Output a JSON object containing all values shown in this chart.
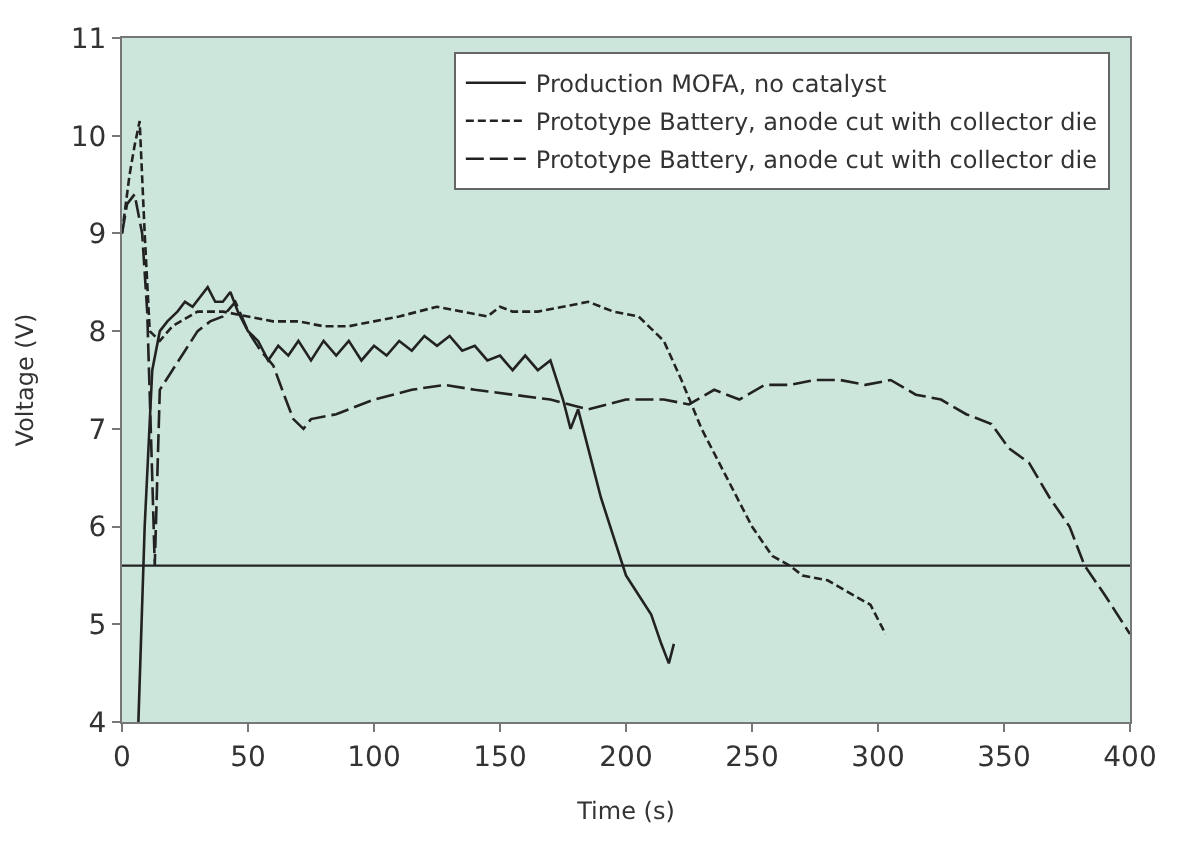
{
  "chart_data": {
    "type": "line",
    "xlabel": "Time (s)",
    "ylabel": "Voltage (V)",
    "xlim": [
      0,
      400
    ],
    "xticks": [
      0,
      50,
      100,
      150,
      200,
      250,
      300,
      350,
      400
    ],
    "ylim": [
      4,
      11
    ],
    "yticks": [
      4,
      5,
      6,
      7,
      8,
      9,
      10,
      11
    ],
    "grid": false,
    "legend": "top right",
    "marker": "none",
    "ref_lines": [
      {
        "axis": "y",
        "value": 5.6,
        "color": "#222222",
        "line_style": "solid"
      }
    ],
    "series": [
      {
        "name": "Production MOFA, no catalyst",
        "color": "#222222",
        "line_style": "solid",
        "x": [
          6.5,
          9,
          12,
          15,
          18,
          22,
          25,
          28,
          31,
          34,
          37,
          40,
          43,
          46,
          50,
          54,
          58,
          62,
          66,
          70,
          75,
          80,
          85,
          90,
          95,
          100,
          105,
          110,
          115,
          120,
          125,
          130,
          135,
          140,
          145,
          150,
          155,
          160,
          165,
          170,
          175,
          178,
          181,
          185,
          190,
          195,
          200,
          205,
          210,
          214,
          217,
          219
        ],
        "values": [
          4,
          6,
          7.6,
          8.0,
          8.1,
          8.2,
          8.3,
          8.25,
          8.35,
          8.45,
          8.3,
          8.3,
          8.4,
          8.2,
          8.0,
          7.9,
          7.7,
          7.85,
          7.75,
          7.9,
          7.7,
          7.9,
          7.75,
          7.9,
          7.7,
          7.85,
          7.75,
          7.9,
          7.8,
          7.95,
          7.85,
          7.95,
          7.8,
          7.85,
          7.7,
          7.75,
          7.6,
          7.75,
          7.6,
          7.7,
          7.3,
          7.0,
          7.2,
          6.8,
          6.3,
          5.9,
          5.5,
          5.3,
          5.1,
          4.8,
          4.6,
          4.8
        ]
      },
      {
        "name": "Prototype Battery, anode cut with collector die",
        "color": "#222222",
        "line_style": "dash",
        "x": [
          0,
          3,
          5,
          7,
          9,
          11,
          15,
          20,
          30,
          40,
          50,
          60,
          70,
          80,
          90,
          100,
          110,
          125,
          135,
          145,
          150,
          155,
          165,
          175,
          185,
          195,
          205,
          215,
          222,
          230,
          240,
          250,
          258,
          265,
          270,
          280,
          290,
          297,
          303
        ],
        "values": [
          9.0,
          9.6,
          9.9,
          10.15,
          9.0,
          8.0,
          7.9,
          8.05,
          8.2,
          8.2,
          8.15,
          8.1,
          8.1,
          8.05,
          8.05,
          8.1,
          8.15,
          8.25,
          8.2,
          8.15,
          8.25,
          8.2,
          8.2,
          8.25,
          8.3,
          8.2,
          8.15,
          7.9,
          7.5,
          7.0,
          6.5,
          6.0,
          5.7,
          5.6,
          5.5,
          5.45,
          5.3,
          5.2,
          4.9
        ]
      },
      {
        "name": "Prototype Battery, anode cut with collector die",
        "color": "#222222",
        "line_style": "longdash",
        "x": [
          0,
          2,
          5,
          8,
          10,
          12,
          13,
          15,
          20,
          25,
          30,
          35,
          40,
          45,
          50,
          55,
          60,
          65,
          68,
          72,
          75,
          85,
          100,
          115,
          128,
          140,
          155,
          170,
          185,
          200,
          215,
          225,
          235,
          245,
          255,
          265,
          275,
          285,
          295,
          305,
          315,
          325,
          335,
          345,
          352,
          360,
          368,
          376,
          382,
          390,
          400
        ],
        "values": [
          9.0,
          9.3,
          9.4,
          9.0,
          8.2,
          6.5,
          5.6,
          7.4,
          7.6,
          7.8,
          8.0,
          8.1,
          8.15,
          8.3,
          8.0,
          7.8,
          7.65,
          7.3,
          7.1,
          7.0,
          7.1,
          7.15,
          7.3,
          7.4,
          7.45,
          7.4,
          7.35,
          7.3,
          7.2,
          7.3,
          7.3,
          7.25,
          7.4,
          7.3,
          7.45,
          7.45,
          7.5,
          7.5,
          7.45,
          7.5,
          7.35,
          7.3,
          7.15,
          7.05,
          6.8,
          6.65,
          6.3,
          6.0,
          5.6,
          5.3,
          4.9
        ]
      }
    ]
  }
}
